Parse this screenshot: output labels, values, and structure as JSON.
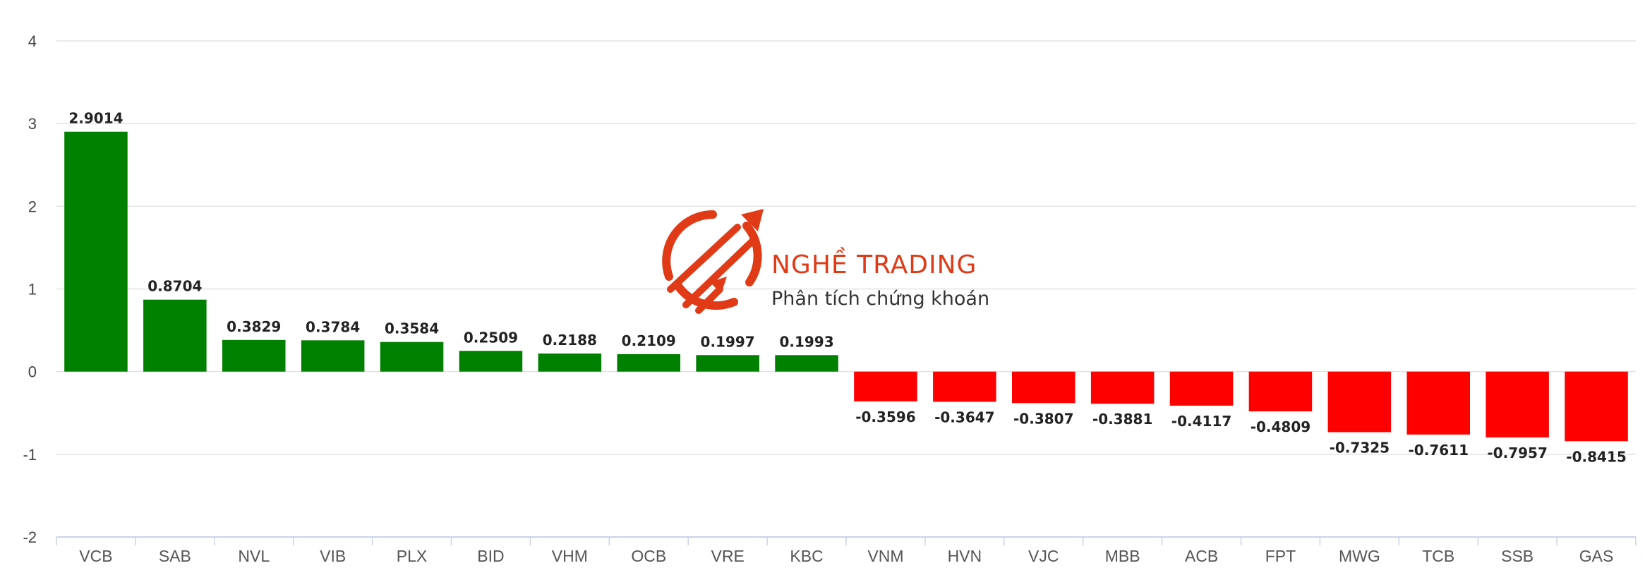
{
  "watermark": {
    "brand": "NGHỀ TRADING",
    "tagline": "Phân tích chứng khoán",
    "color": "#e03a17"
  },
  "colors": {
    "positive": "#008000",
    "negative": "#ff0000",
    "grid": "#e3e3e3",
    "axis": "#c9d3e6"
  },
  "chart_data": {
    "type": "bar",
    "title": "",
    "xlabel": "",
    "ylabel": "",
    "ylim": [
      -2,
      4
    ],
    "yticks": [
      4,
      3,
      2,
      1,
      0,
      -1,
      -2
    ],
    "grid": true,
    "categories": [
      "VCB",
      "SAB",
      "NVL",
      "VIB",
      "PLX",
      "BID",
      "VHM",
      "OCB",
      "VRE",
      "KBC",
      "VNM",
      "HVN",
      "VJC",
      "MBB",
      "ACB",
      "FPT",
      "MWG",
      "TCB",
      "SSB",
      "GAS"
    ],
    "values": [
      2.9014,
      0.8704,
      0.3829,
      0.3784,
      0.3584,
      0.2509,
      0.2188,
      0.2109,
      0.1997,
      0.1993,
      -0.3596,
      -0.3647,
      -0.3807,
      -0.3881,
      -0.4117,
      -0.4809,
      -0.7325,
      -0.7611,
      -0.7957,
      -0.8415
    ],
    "labels": [
      "2.9014",
      "0.8704",
      "0.3829",
      "0.3784",
      "0.3584",
      "0.2509",
      "0.2188",
      "0.2109",
      "0.1997",
      "0.1993",
      "-0.3596",
      "-0.3647",
      "-0.3807",
      "-0.3881",
      "-0.4117",
      "-0.4809",
      "-0.7325",
      "-0.7611",
      "-0.7957",
      "-0.8415"
    ]
  }
}
